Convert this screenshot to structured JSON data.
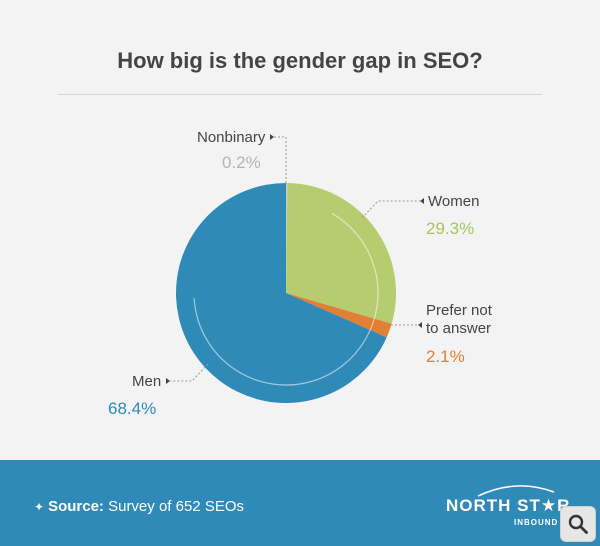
{
  "title": "How big is the gender gap in SEO?",
  "chart_data": {
    "type": "pie",
    "title": "How big is the gender gap in SEO?",
    "slices": [
      {
        "label": "Nonbinary",
        "value": 0.2,
        "display": "0.2%",
        "color": "#c8c8c8"
      },
      {
        "label": "Women",
        "value": 29.3,
        "display": "29.3%",
        "color": "#b5cc6f"
      },
      {
        "label": "Prefer not to answer",
        "display": "2.1%",
        "value": 2.1,
        "color": "#e07f35"
      },
      {
        "label": "Men",
        "value": 68.4,
        "display": "68.4%",
        "color": "#2f8ab8"
      }
    ]
  },
  "labels": {
    "nonbinary": "Nonbinary",
    "nonbinary_pct": "0.2%",
    "women": "Women",
    "women_pct": "29.3%",
    "prefer_line1": "Prefer not",
    "prefer_line2": "to answer",
    "prefer_pct": "2.1%",
    "men": "Men",
    "men_pct": "68.4%"
  },
  "colors": {
    "men": "#2f8ab8",
    "women": "#b5cc6f",
    "prefer": "#e07f35",
    "nonbinary": "#c8c8c8",
    "footer": "#2f8ab8"
  },
  "footer": {
    "source_label": "Source:",
    "source_text": "Survey of 652 SEOs",
    "logo_main": "NORTH ST★R",
    "logo_sub": "INBOUND"
  },
  "icons": {
    "sparkle": "sparkle-icon",
    "zoom": "magnifier-icon"
  }
}
